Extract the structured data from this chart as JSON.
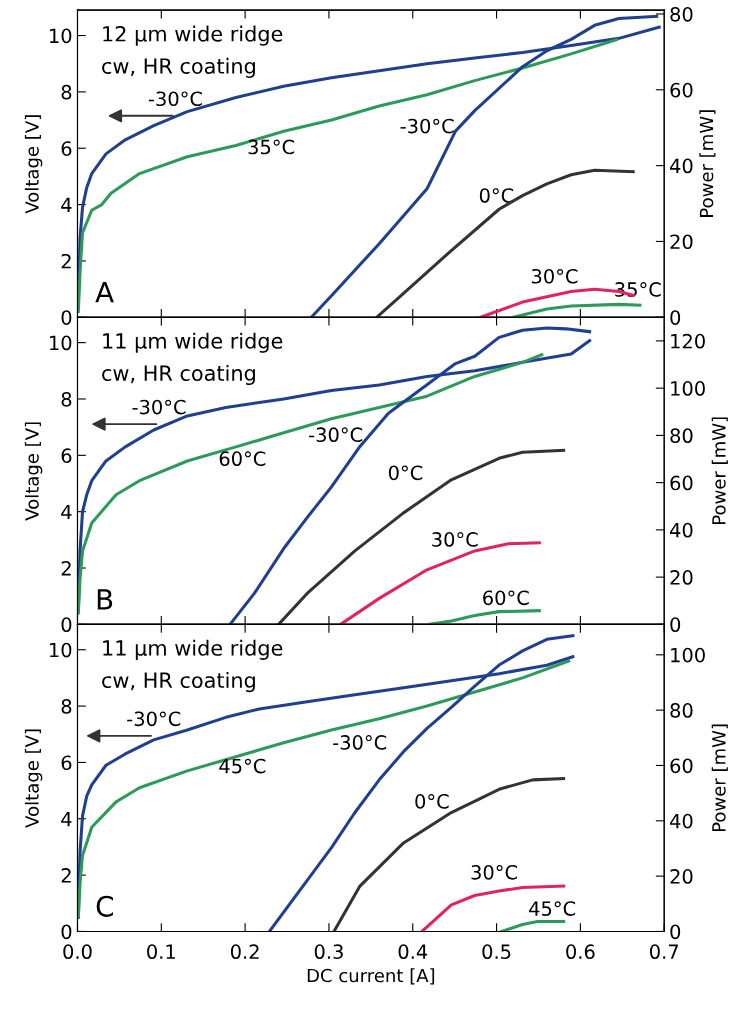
{
  "chart_data": [
    {
      "type": "line",
      "ylabel": "Voltage [V]",
      "y2label": "Power [mW]",
      "xlim": [
        0,
        0.7
      ],
      "ylim": [
        0,
        10.9
      ],
      "y2lim": [
        0,
        81
      ],
      "xticks": [
        0.1,
        0.2,
        0.3,
        0.4,
        0.5,
        0.6
      ],
      "yticks": [
        0,
        2,
        4,
        6,
        8,
        10
      ],
      "y2ticks": [
        0,
        20,
        40,
        60,
        80
      ],
      "tick_labels": "y",
      "series": [
        {
          "color": "#1f3f8f",
          "axis": "y",
          "x": [
            0.001,
            0.003,
            0.006,
            0.011,
            0.017,
            0.034,
            0.057,
            0.091,
            0.131,
            0.189,
            0.246,
            0.303,
            0.36,
            0.417,
            0.474,
            0.531,
            0.589,
            0.646,
            0.694
          ],
          "values": [
            0.5,
            2.8,
            3.9,
            4.6,
            5.1,
            5.8,
            6.3,
            6.8,
            7.3,
            7.8,
            8.2,
            8.5,
            8.75,
            9.0,
            9.2,
            9.4,
            9.65,
            9.9,
            10.3
          ]
        },
        {
          "color": "#2e9a5a",
          "axis": "y",
          "x": [
            0.001,
            0.003,
            0.006,
            0.017,
            0.029,
            0.04,
            0.074,
            0.131,
            0.189,
            0.246,
            0.303,
            0.36,
            0.417,
            0.474,
            0.531,
            0.589,
            0.643
          ],
          "values": [
            0.2,
            1.6,
            3.0,
            3.8,
            4.0,
            4.4,
            5.1,
            5.7,
            6.1,
            6.6,
            7.0,
            7.5,
            7.9,
            8.4,
            8.85,
            9.35,
            9.85
          ]
        },
        {
          "color": "#1f3f8f",
          "axis": "y2",
          "x": [
            0.279,
            0.303,
            0.36,
            0.417,
            0.451,
            0.474,
            0.531,
            0.56,
            0.589,
            0.617,
            0.646,
            0.691
          ],
          "values": [
            0,
            5.7,
            19.4,
            33.9,
            49.1,
            54.5,
            66.1,
            70.3,
            73.3,
            77,
            78.8,
            79.4
          ]
        },
        {
          "color": "#333333",
          "axis": "y2",
          "x": [
            0.357,
            0.386,
            0.446,
            0.503,
            0.531,
            0.56,
            0.589,
            0.617,
            0.663
          ],
          "values": [
            0,
            5.7,
            17.6,
            28.5,
            32.1,
            35.2,
            37.6,
            38.8,
            38.4
          ]
        },
        {
          "color": "#e0245e",
          "axis": "y2",
          "x": [
            0.481,
            0.531,
            0.589,
            0.617,
            0.646,
            0.663
          ],
          "values": [
            0,
            4.0,
            6.8,
            7.4,
            6.8,
            5.8
          ]
        },
        {
          "color": "#2e9a5a",
          "axis": "y2",
          "x": [
            0.52,
            0.56,
            0.589,
            0.646,
            0.671
          ],
          "values": [
            0,
            2.2,
            3.0,
            3.4,
            3.2
          ]
        }
      ],
      "annotations": [
        "12 μm wide ridge",
        "cw, HR coating",
        "A",
        "-30°C",
        "35°C",
        "-30°C",
        "0°C",
        "30°C",
        "35°C"
      ]
    },
    {
      "type": "line",
      "ylabel": "Voltage [V]",
      "y2label": "Power [mW]",
      "xlim": [
        0,
        0.7
      ],
      "ylim": [
        0,
        10.9
      ],
      "y2lim": [
        0,
        130
      ],
      "xticks": [
        0.1,
        0.2,
        0.3,
        0.4,
        0.5,
        0.6
      ],
      "yticks": [
        0,
        2,
        4,
        6,
        8,
        10
      ],
      "y2ticks": [
        0,
        20,
        40,
        60,
        80,
        100,
        120
      ],
      "tick_labels": "y",
      "series": [
        {
          "color": "#1f3f8f",
          "axis": "y",
          "x": [
            0.001,
            0.003,
            0.006,
            0.011,
            0.017,
            0.034,
            0.057,
            0.091,
            0.131,
            0.177,
            0.246,
            0.303,
            0.36,
            0.417,
            0.474,
            0.531,
            0.589,
            0.611
          ],
          "values": [
            0.5,
            2.6,
            4.0,
            4.6,
            5.1,
            5.8,
            6.3,
            6.9,
            7.4,
            7.7,
            8.0,
            8.3,
            8.5,
            8.8,
            9.0,
            9.3,
            9.6,
            10.07
          ]
        },
        {
          "color": "#2e9a5a",
          "axis": "y",
          "x": [
            0.001,
            0.003,
            0.006,
            0.017,
            0.046,
            0.074,
            0.131,
            0.189,
            0.246,
            0.303,
            0.36,
            0.417,
            0.474,
            0.531,
            0.554
          ],
          "values": [
            0.4,
            1.6,
            2.6,
            3.6,
            4.6,
            5.1,
            5.8,
            6.3,
            6.8,
            7.3,
            7.7,
            8.1,
            8.8,
            9.3,
            9.57
          ]
        },
        {
          "color": "#1f3f8f",
          "axis": "y2",
          "x": [
            0.182,
            0.211,
            0.246,
            0.274,
            0.303,
            0.337,
            0.371,
            0.417,
            0.451,
            0.474,
            0.503,
            0.531,
            0.56,
            0.583,
            0.611
          ],
          "values": [
            0,
            13.1,
            32.1,
            45.2,
            58.2,
            75.3,
            89.4,
            101.4,
            110.4,
            113.5,
            121.5,
            124.5,
            125.5,
            125.1,
            123.9
          ]
        },
        {
          "color": "#333333",
          "axis": "y2",
          "x": [
            0.24,
            0.274,
            0.331,
            0.389,
            0.446,
            0.503,
            0.531,
            0.58
          ],
          "values": [
            0,
            13.1,
            31.1,
            47.2,
            61.2,
            70.3,
            72.9,
            73.7
          ]
        },
        {
          "color": "#e0245e",
          "axis": "y2",
          "x": [
            0.314,
            0.36,
            0.417,
            0.474,
            0.514,
            0.551
          ],
          "values": [
            0,
            11.0,
            23.1,
            31.1,
            34.1,
            34.5
          ]
        },
        {
          "color": "#2e9a5a",
          "axis": "y2",
          "x": [
            0.42,
            0.446,
            0.474,
            0.503,
            0.551
          ],
          "values": [
            0,
            1.4,
            3.8,
            5.4,
            5.8
          ]
        }
      ],
      "annotations": [
        "11 μm wide ridge",
        "cw, HR coating",
        "B",
        "-30°C",
        "60°C",
        "-30°C",
        "0°C",
        "30°C",
        "60°C"
      ]
    },
    {
      "type": "line",
      "xlabel": "DC current [A]",
      "ylabel": "Voltage [V]",
      "y2label": "Power [mW]",
      "xlim": [
        0,
        0.7
      ],
      "ylim": [
        0,
        10.9
      ],
      "y2lim": [
        0,
        111
      ],
      "xticks": [
        {
          "value": 0,
          "label": "0.0"
        },
        0.1,
        0.2,
        0.3,
        0.4,
        0.5,
        0.6,
        0.7
      ],
      "yticks": [
        0,
        2,
        4,
        6,
        8,
        10
      ],
      "y2ticks": [
        0,
        20,
        40,
        60,
        80,
        100
      ],
      "series": [
        {
          "color": "#1f3f8f",
          "axis": "y",
          "x": [
            0.001,
            0.003,
            0.006,
            0.011,
            0.017,
            0.034,
            0.057,
            0.091,
            0.131,
            0.177,
            0.217,
            0.274,
            0.331,
            0.389,
            0.446,
            0.503,
            0.56,
            0.591
          ],
          "values": [
            0.5,
            2.8,
            4.1,
            4.8,
            5.2,
            5.9,
            6.3,
            6.8,
            7.15,
            7.6,
            7.9,
            8.15,
            8.4,
            8.65,
            8.9,
            9.15,
            9.45,
            9.75
          ]
        },
        {
          "color": "#2e9a5a",
          "axis": "y",
          "x": [
            0.001,
            0.003,
            0.006,
            0.017,
            0.046,
            0.074,
            0.131,
            0.189,
            0.246,
            0.303,
            0.36,
            0.417,
            0.474,
            0.531,
            0.586
          ],
          "values": [
            0.5,
            1.7,
            2.7,
            3.7,
            4.6,
            5.1,
            5.7,
            6.2,
            6.7,
            7.15,
            7.55,
            8.0,
            8.5,
            9.0,
            9.6
          ]
        },
        {
          "color": "#1f3f8f",
          "axis": "y2",
          "x": [
            0.229,
            0.269,
            0.303,
            0.331,
            0.36,
            0.389,
            0.417,
            0.446,
            0.474,
            0.503,
            0.531,
            0.56,
            0.591
          ],
          "values": [
            0,
            16.4,
            30.3,
            43,
            54.8,
            65,
            73.4,
            81,
            88.7,
            96.3,
            101.4,
            105.6,
            106.9
          ]
        },
        {
          "color": "#333333",
          "axis": "y2",
          "x": [
            0.306,
            0.337,
            0.389,
            0.446,
            0.503,
            0.543,
            0.58
          ],
          "values": [
            0,
            16.4,
            32,
            43,
            51.4,
            54.8,
            55.3
          ]
        },
        {
          "color": "#e0245e",
          "axis": "y2",
          "x": [
            0.411,
            0.446,
            0.474,
            0.503,
            0.531,
            0.58
          ],
          "values": [
            0,
            9.6,
            13,
            14.6,
            15.9,
            16.4
          ]
        },
        {
          "color": "#2e9a5a",
          "axis": "y2",
          "x": [
            0.506,
            0.531,
            0.549,
            0.58
          ],
          "values": [
            0,
            2.5,
            3.6,
            3.6
          ]
        }
      ],
      "annotations": [
        "11 μm wide ridge",
        "cw, HR coating",
        "C",
        "-30°C",
        "45°C",
        "-30°C",
        "0°C",
        "30°C",
        "45°C"
      ]
    }
  ]
}
